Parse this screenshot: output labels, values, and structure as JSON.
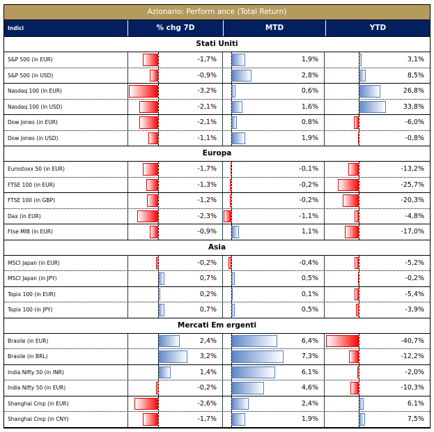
{
  "title": "Azionario: Perform ance (Total Return)",
  "headers": {
    "name": "Indici",
    "d7": "% chg 7D",
    "mtd": "MTD",
    "ytd": "YTD"
  },
  "colors": {
    "title_bg": "#B39A5E",
    "header_bg": "#002060",
    "negative": "#FF0000",
    "positive": "#5B85C5"
  },
  "sections": [
    {
      "name": "Stati Uniti",
      "rows": [
        {
          "name": "S&P 500 (in EUR)",
          "d7": -1.7,
          "mtd": 1.9,
          "ytd": 3.1,
          "d7_label": "-1,7%",
          "mtd_label": "1,9%",
          "ytd_label": "3,1%"
        },
        {
          "name": "S&P 500 (in USD)",
          "d7": -0.9,
          "mtd": 2.8,
          "ytd": 8.5,
          "d7_label": "-0,9%",
          "mtd_label": "2,8%",
          "ytd_label": "8,5%"
        },
        {
          "name": "Nasdaq 100 (in EUR)",
          "d7": -3.2,
          "mtd": 0.6,
          "ytd": 26.8,
          "d7_label": "-3,2%",
          "mtd_label": "0,6%",
          "ytd_label": "26,8%"
        },
        {
          "name": "Nasdaq 100 (in USD)",
          "d7": -2.1,
          "mtd": 1.6,
          "ytd": 33.8,
          "d7_label": "-2,1%",
          "mtd_label": "1,6%",
          "ytd_label": "33,8%"
        },
        {
          "name": "Dow Jones (in EUR)",
          "d7": -2.1,
          "mtd": 0.8,
          "ytd": -6.0,
          "d7_label": "-2,1%",
          "mtd_label": "0,8%",
          "ytd_label": "-6,0%"
        },
        {
          "name": "Dow Jones (in USD)",
          "d7": -1.1,
          "mtd": 1.9,
          "ytd": -0.8,
          "d7_label": "-1,1%",
          "mtd_label": "1,9%",
          "ytd_label": "-0,8%"
        }
      ]
    },
    {
      "name": "Europa",
      "rows": [
        {
          "name": "Eurostoxx 50 (in EUR)",
          "d7": -1.7,
          "mtd": -0.1,
          "ytd": -13.2,
          "d7_label": "-1,7%",
          "mtd_label": "-0,1%",
          "ytd_label": "-13,2%"
        },
        {
          "name": "FTSE 100 (in EUR)",
          "d7": -1.3,
          "mtd": -0.2,
          "ytd": -25.7,
          "d7_label": "-1,3%",
          "mtd_label": "-0,2%",
          "ytd_label": "-25,7%"
        },
        {
          "name": "FTSE 100 (in GBP)",
          "d7": -1.2,
          "mtd": -0.2,
          "ytd": -20.3,
          "d7_label": "-1,2%",
          "mtd_label": "-0,2%",
          "ytd_label": "-20,3%"
        },
        {
          "name": "Dax (in EUR)",
          "d7": -2.3,
          "mtd": -1.1,
          "ytd": -4.8,
          "d7_label": "-2,3%",
          "mtd_label": "-1,1%",
          "ytd_label": "-4,8%"
        },
        {
          "name": "Ftse MIB (in EUR)",
          "d7": -0.9,
          "mtd": 1.1,
          "ytd": -17.0,
          "d7_label": "-0,9%",
          "mtd_label": "1,1%",
          "ytd_label": "-17,0%"
        }
      ]
    },
    {
      "name": "Asia",
      "rows": [
        {
          "name": "MSCI Japan (in EUR)",
          "d7": -0.2,
          "mtd": -0.4,
          "ytd": -5.2,
          "d7_label": "-0,2%",
          "mtd_label": "-0,4%",
          "ytd_label": "-5,2%"
        },
        {
          "name": "MSCI Japan (in JPY)",
          "d7": 0.7,
          "mtd": 0.5,
          "ytd": -0.2,
          "d7_label": "0,7%",
          "mtd_label": "0,5%",
          "ytd_label": "-0,2%"
        },
        {
          "name": "Topix 100 (in EUR)",
          "d7": 0.2,
          "mtd": 0.1,
          "ytd": -5.4,
          "d7_label": "0,2%",
          "mtd_label": "0,1%",
          "ytd_label": "-5,4%"
        },
        {
          "name": "Topix 100 (in JPY)",
          "d7": 0.7,
          "mtd": 0.5,
          "ytd": -3.9,
          "d7_label": "0,7%",
          "mtd_label": "0,5%",
          "ytd_label": "-3,9%"
        }
      ]
    },
    {
      "name": "Mercati Em ergenti",
      "rows": [
        {
          "name": "Brasile (in EUR)",
          "d7": 2.4,
          "mtd": 6.4,
          "ytd": -40.7,
          "d7_label": "2,4%",
          "mtd_label": "6,4%",
          "ytd_label": "-40,7%"
        },
        {
          "name": "Brasile (in BRL)",
          "d7": 3.2,
          "mtd": 7.3,
          "ytd": -12.2,
          "d7_label": "3,2%",
          "mtd_label": "7,3%",
          "ytd_label": "-12,2%"
        },
        {
          "name": "India Nifty 50 (in INR)",
          "d7": 1.4,
          "mtd": 6.1,
          "ytd": -2.0,
          "d7_label": "1,4%",
          "mtd_label": "6,1%",
          "ytd_label": "-2,0%"
        },
        {
          "name": "India Nifty 50 (in EUR)",
          "d7": -0.2,
          "mtd": 4.6,
          "ytd": -10.3,
          "d7_label": "-0,2%",
          "mtd_label": "4,6%",
          "ytd_label": "-10,3%"
        },
        {
          "name": "Shanghai Cmp (in EUR)",
          "d7": -2.6,
          "mtd": 2.4,
          "ytd": 6.1,
          "d7_label": "-2,6%",
          "mtd_label": "2,4%",
          "ytd_label": "6,1%"
        },
        {
          "name": "Shanghai Cmp (in CNY)",
          "d7": -1.7,
          "mtd": 1.9,
          "ytd": 7.5,
          "d7_label": "-1,7%",
          "mtd_label": "1,9%",
          "ytd_label": "7,5%"
        }
      ]
    }
  ]
}
